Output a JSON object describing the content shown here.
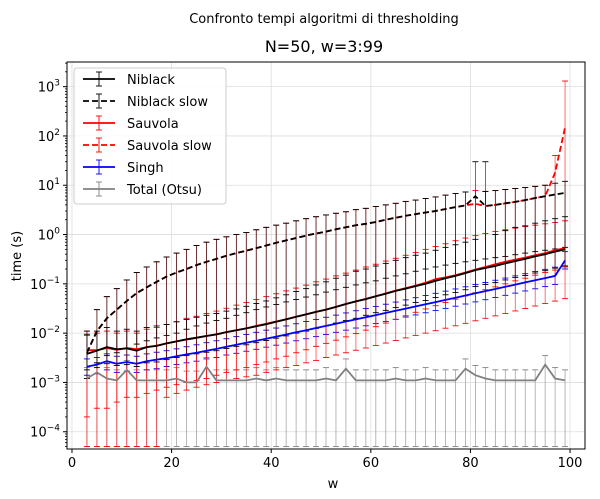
{
  "chart_data": {
    "type": "line",
    "suptitle": "Confronto tempi algoritmi di thresholding",
    "title": "N=50, w=3:99",
    "xlabel": "w",
    "ylabel": "time (s)",
    "xlim": [
      -1,
      103
    ],
    "ylim_log10": [
      -4.35,
      3.5
    ],
    "yscale": "log",
    "grid": true,
    "legend_position": "upper-left",
    "x_ticks": [
      {
        "value": 0,
        "label": "0"
      },
      {
        "value": 20,
        "label": "20"
      },
      {
        "value": 40,
        "label": "40"
      },
      {
        "value": 60,
        "label": "60"
      },
      {
        "value": 80,
        "label": "80"
      },
      {
        "value": 100,
        "label": "100"
      }
    ],
    "y_ticks": [
      {
        "exp": -4,
        "base": "10",
        "sup": "−4"
      },
      {
        "exp": -3,
        "base": "10",
        "sup": "−3"
      },
      {
        "exp": -2,
        "base": "10",
        "sup": "−2"
      },
      {
        "exp": -1,
        "base": "10",
        "sup": "−1"
      },
      {
        "exp": 0,
        "base": "10",
        "sup": "0"
      },
      {
        "exp": 1,
        "base": "10",
        "sup": "1"
      },
      {
        "exp": 2,
        "base": "10",
        "sup": "2"
      },
      {
        "exp": 3,
        "base": "10",
        "sup": "3"
      }
    ],
    "x": [
      3,
      5,
      7,
      9,
      11,
      13,
      15,
      17,
      19,
      21,
      23,
      25,
      27,
      29,
      31,
      33,
      35,
      37,
      39,
      41,
      43,
      45,
      47,
      49,
      51,
      53,
      55,
      57,
      59,
      61,
      63,
      65,
      67,
      69,
      71,
      73,
      75,
      77,
      79,
      81,
      83,
      85,
      87,
      89,
      91,
      93,
      95,
      97,
      99
    ],
    "series": [
      {
        "name": "Niblack",
        "color": "#000000",
        "dashed": false,
        "values": [
          0.0038,
          0.0044,
          0.0052,
          0.0047,
          0.0049,
          0.0044,
          0.0052,
          0.0055,
          0.0062,
          0.0068,
          0.0075,
          0.0081,
          0.0088,
          0.0094,
          0.0105,
          0.0115,
          0.0125,
          0.0138,
          0.0152,
          0.017,
          0.019,
          0.0215,
          0.024,
          0.027,
          0.03,
          0.034,
          0.039,
          0.044,
          0.049,
          0.056,
          0.063,
          0.072,
          0.08,
          0.09,
          0.1,
          0.115,
          0.13,
          0.145,
          0.165,
          0.19,
          0.21,
          0.23,
          0.26,
          0.29,
          0.32,
          0.36,
          0.4,
          0.45,
          0.5
        ],
        "err_hi": [
          0.0095,
          0.011,
          0.013,
          0.011,
          0.012,
          0.011,
          0.013,
          0.014,
          0.015,
          0.017,
          0.019,
          0.021,
          0.023,
          0.025,
          0.028,
          0.031,
          0.035,
          0.04,
          0.045,
          0.052,
          0.06,
          0.07,
          0.08,
          0.095,
          0.11,
          0.13,
          0.15,
          0.18,
          0.2,
          0.23,
          0.26,
          0.3,
          0.34,
          0.38,
          0.42,
          0.48,
          0.55,
          0.62,
          0.7,
          0.8,
          30.0,
          1.0,
          1.2,
          1.4,
          1.5,
          1.7,
          1.9,
          2.1,
          2.3
        ],
        "err_lo": [
          0.0018,
          0.002,
          0.0024,
          0.0022,
          0.0023,
          0.0021,
          0.0025,
          0.0026,
          0.0029,
          0.0032,
          0.0035,
          0.0038,
          0.0041,
          0.0044,
          0.0049,
          0.0054,
          0.0058,
          0.0064,
          0.0071,
          0.0079,
          0.0088,
          0.01,
          0.011,
          0.0125,
          0.014,
          0.016,
          0.018,
          0.02,
          0.023,
          0.026,
          0.029,
          0.033,
          0.037,
          0.042,
          0.046,
          0.053,
          0.06,
          0.067,
          0.076,
          0.088,
          0.097,
          0.106,
          0.12,
          0.134,
          0.148,
          0.166,
          0.185,
          0.208,
          0.231
        ]
      },
      {
        "name": "Niblack slow",
        "color": "#000000",
        "dashed": true,
        "values": [
          0.004,
          0.011,
          0.02,
          0.03,
          0.045,
          0.065,
          0.085,
          0.11,
          0.14,
          0.17,
          0.2,
          0.24,
          0.28,
          0.32,
          0.37,
          0.42,
          0.47,
          0.53,
          0.6,
          0.68,
          0.76,
          0.85,
          0.95,
          1.05,
          1.15,
          1.28,
          1.4,
          1.55,
          1.65,
          1.8,
          2.0,
          2.2,
          2.4,
          2.6,
          2.8,
          3.0,
          3.3,
          3.6,
          3.9,
          6.0,
          3.8,
          4.0,
          4.3,
          4.6,
          5.0,
          5.5,
          6.0,
          6.5,
          7.0
        ],
        "err_hi": [
          0.011,
          0.03,
          0.055,
          0.08,
          0.12,
          0.17,
          0.22,
          0.28,
          0.35,
          0.42,
          0.5,
          0.6,
          0.7,
          0.8,
          0.9,
          1.0,
          1.1,
          1.25,
          1.4,
          1.55,
          1.7,
          1.9,
          2.1,
          2.3,
          2.5,
          2.7,
          2.9,
          3.2,
          3.4,
          3.7,
          4.0,
          4.3,
          4.7,
          5.0,
          5.4,
          5.8,
          6.3,
          6.8,
          7.3,
          30.0,
          7.5,
          7.8,
          8.2,
          8.6,
          9.0,
          9.5,
          10.0,
          11.0,
          12.0
        ],
        "err_lo": [
          0.0012,
          0.0025,
          0.0035,
          0.004,
          0.005,
          0.006,
          0.007,
          0.008,
          0.009,
          0.01,
          0.012,
          0.014,
          0.016,
          0.018,
          0.02,
          0.023,
          0.026,
          0.03,
          0.034,
          0.038,
          0.043,
          0.048,
          0.054,
          0.06,
          0.068,
          0.076,
          0.085,
          0.095,
          0.105,
          0.115,
          0.13,
          0.145,
          0.16,
          0.18,
          0.2,
          0.22,
          0.24,
          0.26,
          0.28,
          0.3,
          0.32,
          0.34,
          0.36,
          0.39,
          0.42,
          0.45,
          0.48,
          0.51,
          0.55
        ]
      },
      {
        "name": "Sauvola",
        "color": "#ff0000",
        "dashed": false,
        "values": [
          0.0045,
          0.0045,
          0.005,
          0.0046,
          0.005,
          0.0047,
          0.0052,
          0.0056,
          0.0062,
          0.0068,
          0.0074,
          0.008,
          0.0087,
          0.0095,
          0.0105,
          0.0115,
          0.0125,
          0.014,
          0.0155,
          0.0172,
          0.0192,
          0.0215,
          0.024,
          0.027,
          0.03,
          0.034,
          0.039,
          0.044,
          0.0495,
          0.056,
          0.064,
          0.073,
          0.082,
          0.092,
          0.105,
          0.125,
          0.135,
          0.15,
          0.17,
          0.195,
          0.22,
          0.25,
          0.28,
          0.31,
          0.34,
          0.38,
          0.42,
          0.48,
          0.53
        ],
        "err_hi": [
          0.009,
          0.01,
          0.011,
          0.01,
          0.011,
          0.01,
          0.012,
          0.013,
          0.015,
          0.017,
          0.02,
          0.022,
          0.025,
          0.028,
          0.032,
          0.037,
          0.042,
          0.048,
          0.055,
          0.063,
          0.072,
          0.082,
          0.094,
          0.11,
          0.125,
          0.145,
          0.165,
          0.19,
          0.22,
          0.25,
          0.29,
          0.33,
          0.38,
          0.43,
          0.5,
          0.57,
          0.65,
          0.75,
          0.85,
          0.95,
          1.05,
          1.15,
          1.25,
          1.35,
          1.45,
          1.55,
          1.65,
          1.75,
          1.9
        ],
        "err_lo": [
          5e-05,
          5e-05,
          5e-05,
          5e-05,
          5e-05,
          5e-05,
          5e-05,
          5e-05,
          0.0005,
          0.0006,
          0.0007,
          0.0008,
          0.0009,
          0.001,
          0.0011,
          0.0012,
          0.0013,
          0.0014,
          0.0016,
          0.0018,
          0.002,
          0.0022,
          0.0025,
          0.0028,
          0.0032,
          0.0036,
          0.004,
          0.0045,
          0.005,
          0.0056,
          0.0063,
          0.0071,
          0.008,
          0.009,
          0.01,
          0.0112,
          0.0126,
          0.0141,
          0.0158,
          0.0178,
          0.02,
          0.0224,
          0.0251,
          0.0282,
          0.0316,
          0.0355,
          0.0398,
          0.0447,
          0.0501
        ]
      },
      {
        "name": "Sauvola slow",
        "color": "#ff0000",
        "dashed": true,
        "values": [
          0.004,
          0.011,
          0.02,
          0.03,
          0.045,
          0.065,
          0.085,
          0.11,
          0.14,
          0.17,
          0.2,
          0.24,
          0.28,
          0.32,
          0.37,
          0.42,
          0.47,
          0.53,
          0.6,
          0.68,
          0.76,
          0.85,
          0.95,
          1.05,
          1.15,
          1.28,
          1.4,
          1.55,
          1.65,
          1.8,
          2.0,
          2.2,
          2.4,
          2.6,
          2.8,
          3.0,
          3.3,
          3.6,
          3.9,
          4.2,
          3.8,
          4.0,
          4.3,
          4.6,
          5.0,
          5.5,
          6.0,
          18.0,
          150.0
        ],
        "err_hi": [
          0.011,
          0.03,
          0.055,
          0.08,
          0.12,
          0.17,
          0.22,
          0.28,
          0.35,
          0.42,
          0.5,
          0.6,
          0.7,
          0.8,
          0.9,
          1.0,
          1.1,
          1.25,
          1.4,
          1.55,
          1.7,
          1.9,
          2.1,
          2.3,
          2.5,
          2.7,
          2.9,
          3.2,
          3.4,
          3.7,
          4.0,
          4.3,
          4.7,
          5.0,
          5.4,
          5.8,
          6.3,
          6.8,
          7.3,
          7.8,
          7.5,
          7.8,
          8.2,
          8.6,
          9.0,
          9.5,
          10.0,
          40.0,
          1300.0
        ],
        "err_lo": [
          0.0002,
          0.0003,
          0.0003,
          0.0004,
          0.0005,
          0.0005,
          0.0006,
          0.0007,
          0.0008,
          0.0009,
          0.001,
          0.0011,
          0.0012,
          0.0014,
          0.0016,
          0.0018,
          0.002,
          0.0023,
          0.0026,
          0.003,
          0.0034,
          0.004,
          0.0046,
          0.0054,
          0.0062,
          0.0072,
          0.0084,
          0.0098,
          0.0115,
          0.0135,
          0.016,
          0.019,
          0.0225,
          0.0265,
          0.031,
          0.036,
          0.042,
          0.049,
          0.057,
          0.066,
          0.076,
          0.087,
          0.1,
          0.115,
          0.13,
          0.15,
          0.17,
          0.19,
          0.22
        ]
      },
      {
        "name": "Singh",
        "color": "#0000ff",
        "dashed": false,
        "values": [
          0.0021,
          0.0023,
          0.0027,
          0.0024,
          0.0026,
          0.0024,
          0.0027,
          0.0029,
          0.0031,
          0.0034,
          0.0037,
          0.004,
          0.0044,
          0.0048,
          0.0053,
          0.0058,
          0.0064,
          0.007,
          0.0077,
          0.0085,
          0.0094,
          0.0104,
          0.0115,
          0.0127,
          0.014,
          0.0155,
          0.0172,
          0.019,
          0.021,
          0.0232,
          0.0257,
          0.0285,
          0.0315,
          0.0349,
          0.0386,
          0.0427,
          0.0473,
          0.0524,
          0.058,
          0.0642,
          0.0711,
          0.0787,
          0.0871,
          0.0965,
          0.1068,
          0.1183,
          0.131,
          0.145,
          0.3
        ],
        "err_hi": [
          0.003,
          0.0032,
          0.0038,
          0.0034,
          0.0036,
          0.0034,
          0.0038,
          0.0041,
          0.0044,
          0.0048,
          0.0053,
          0.0058,
          0.0064,
          0.007,
          0.0077,
          0.0085,
          0.0094,
          0.0104,
          0.0115,
          0.0127,
          0.014,
          0.0155,
          0.0172,
          0.019,
          0.021,
          0.0232,
          0.0257,
          0.0285,
          0.0315,
          0.0349,
          0.0386,
          0.0427,
          0.0473,
          0.0524,
          0.058,
          0.0642,
          0.0711,
          0.0787,
          0.0871,
          0.0965,
          0.1068,
          0.1183,
          0.131,
          0.145,
          0.1606,
          0.1778,
          0.1969,
          0.218,
          0.45
        ],
        "err_lo": [
          0.0014,
          0.0015,
          0.0018,
          0.0016,
          0.0017,
          0.0016,
          0.0018,
          0.0019,
          0.0021,
          0.0023,
          0.0025,
          0.0027,
          0.003,
          0.0032,
          0.0036,
          0.0039,
          0.0043,
          0.0047,
          0.0052,
          0.0057,
          0.0063,
          0.007,
          0.0077,
          0.0085,
          0.0094,
          0.0104,
          0.0115,
          0.0127,
          0.0141,
          0.0156,
          0.0173,
          0.0191,
          0.0212,
          0.0234,
          0.0259,
          0.0287,
          0.0318,
          0.0352,
          0.039,
          0.0431,
          0.0477,
          0.0528,
          0.0585,
          0.0648,
          0.0717,
          0.0794,
          0.0879,
          0.0973,
          0.2
        ]
      },
      {
        "name": "Total (Otsu)",
        "color": "#808080",
        "dashed": false,
        "values": [
          0.0012,
          0.0016,
          0.0012,
          0.0011,
          0.0018,
          0.0011,
          0.0011,
          0.0011,
          0.0011,
          0.0012,
          0.001,
          0.001,
          0.0021,
          0.0011,
          0.0011,
          0.0011,
          0.0011,
          0.0012,
          0.0011,
          0.0012,
          0.0011,
          0.0011,
          0.0011,
          0.0011,
          0.0012,
          0.0011,
          0.0019,
          0.0011,
          0.0011,
          0.0011,
          0.0011,
          0.0012,
          0.0011,
          0.0011,
          0.0012,
          0.0011,
          0.0011,
          0.0011,
          0.0019,
          0.0014,
          0.0012,
          0.0011,
          0.0011,
          0.0011,
          0.0011,
          0.0011,
          0.0023,
          0.0012,
          0.0011
        ],
        "err_hi": [
          0.002,
          0.0025,
          0.002,
          0.0018,
          0.0028,
          0.0018,
          0.0018,
          0.0018,
          0.0018,
          0.002,
          0.0017,
          0.0017,
          0.0032,
          0.0018,
          0.0018,
          0.0018,
          0.0018,
          0.002,
          0.0018,
          0.002,
          0.0018,
          0.0018,
          0.0018,
          0.0018,
          0.002,
          0.0018,
          0.003,
          0.0018,
          0.0018,
          0.0018,
          0.0018,
          0.002,
          0.0018,
          0.0018,
          0.002,
          0.0018,
          0.0018,
          0.0018,
          0.003,
          0.0022,
          0.002,
          0.0018,
          0.0018,
          0.0018,
          0.0018,
          0.0018,
          0.0035,
          0.002,
          0.0018
        ],
        "err_lo": [
          5e-05,
          5e-05,
          5e-05,
          5e-05,
          5e-05,
          5e-05,
          5e-05,
          5e-05,
          5e-05,
          5e-05,
          5e-05,
          5e-05,
          5e-05,
          5e-05,
          5e-05,
          5e-05,
          5e-05,
          5e-05,
          5e-05,
          5e-05,
          5e-05,
          5e-05,
          5e-05,
          5e-05,
          5e-05,
          5e-05,
          5e-05,
          5e-05,
          5e-05,
          5e-05,
          5e-05,
          5e-05,
          5e-05,
          5e-05,
          5e-05,
          5e-05,
          5e-05,
          5e-05,
          5e-05,
          5e-05,
          5e-05,
          5e-05,
          5e-05,
          5e-05,
          5e-05,
          5e-05,
          5e-05,
          5e-05,
          5e-05
        ]
      }
    ]
  }
}
